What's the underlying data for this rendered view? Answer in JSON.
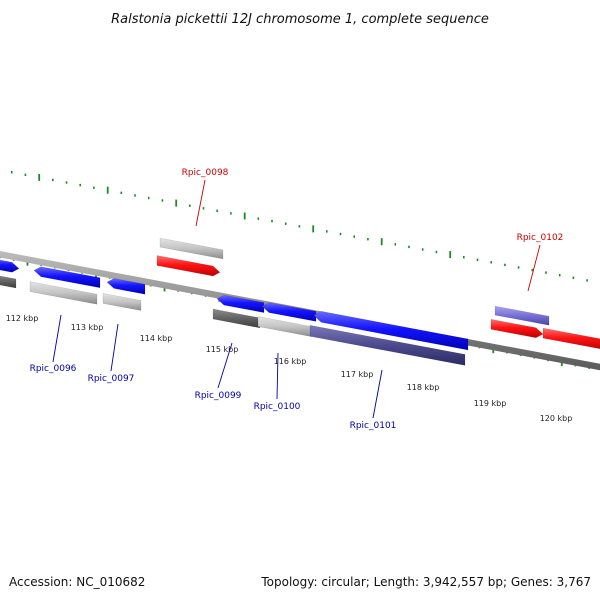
{
  "title": "Ralstonia pickettii 12J chromosome 1, complete sequence",
  "footer": {
    "accession": "Accession: NC_010682",
    "summary": "Topology: circular; Length: 3,942,557 bp; Genes: 3,767"
  },
  "colors": {
    "forward_gene": "#1414ff",
    "highlight_gene": "#ff1414",
    "rna_gene": "#7870d8",
    "label_forward": "#cc0000",
    "label_reverse": "#0000aa",
    "backbone": "#8a8a8a",
    "scale_dots": "#1e8a1e"
  },
  "scale": {
    "ticks": [
      {
        "label": "112 kbp"
      },
      {
        "label": "113 kbp"
      },
      {
        "label": "114 kbp"
      },
      {
        "label": "115 kbp"
      },
      {
        "label": "116 kbp"
      },
      {
        "label": "117 kbp"
      },
      {
        "label": "118 kbp"
      },
      {
        "label": "119 kbp"
      },
      {
        "label": "120 kbp"
      }
    ]
  },
  "gene_labels": {
    "rpic_0098": "Rpic_0098",
    "rpic_0102": "Rpic_0102",
    "rpic_0096": "Rpic_0096",
    "rpic_0097": "Rpic_0097",
    "rpic_0099": "Rpic_0099",
    "rpic_0100": "Rpic_0100",
    "rpic_0101": "Rpic_0101"
  }
}
